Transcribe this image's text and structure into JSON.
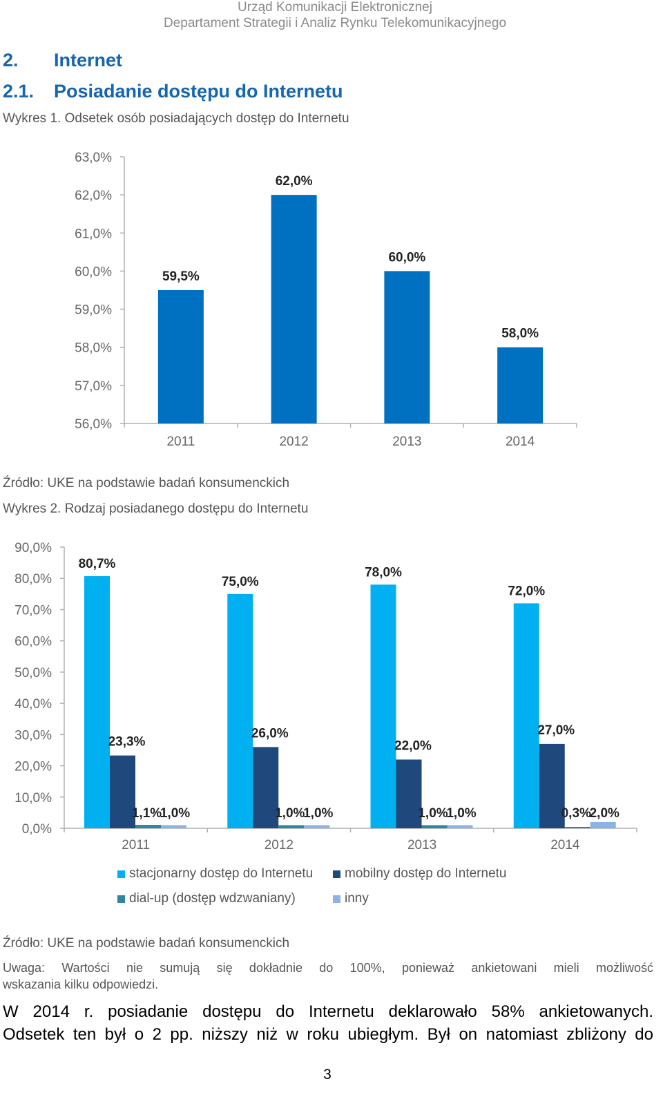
{
  "header": {
    "line1": "Urząd Komunikacji Elektronicznej",
    "line2": "Departament Strategii i Analiz Rynku Telekomunikacyjnego"
  },
  "section": {
    "number": "2.",
    "title": "Internet"
  },
  "subsection": {
    "number": "2.1.",
    "title": "Posiadanie dostępu do Internetu"
  },
  "chart1_caption": "Wykres 1. Odsetek osób posiadających dostęp do Internetu",
  "chart1_source": "Źródło: UKE na podstawie badań konsumenckich",
  "chart2_caption": "Wykres 2. Rodzaj posiadanego dostępu do Internetu",
  "chart2_source": "Źródło: UKE na podstawie badań konsumenckich",
  "note": {
    "line1": "Uwaga: Wartości nie sumują się dokładnie do 100%, ponieważ ankietowani mieli możliwość",
    "line2": "wskazania kilku odpowiedzi."
  },
  "body": {
    "line1": "W 2014 r. posiadanie dostępu do Internetu deklarowało 58% ankietowanych.",
    "line2": "Odsetek ten był o 2 pp. niższy niż w roku ubiegłym. Był on natomiast zbliżony do"
  },
  "page_number": "3",
  "chart_data": [
    {
      "type": "bar",
      "title": "",
      "categories": [
        "2011",
        "2012",
        "2013",
        "2014"
      ],
      "values": [
        59.5,
        62.0,
        60.0,
        58.0
      ],
      "value_labels": [
        "59,5%",
        "62,0%",
        "60,0%",
        "58,0%"
      ],
      "ylim": [
        56,
        63
      ],
      "yticks": [
        56,
        57,
        58,
        59,
        60,
        61,
        62,
        63
      ],
      "ytick_labels": [
        "56,0%",
        "57,0%",
        "58,0%",
        "59,0%",
        "60,0%",
        "61,0%",
        "62,0%",
        "63,0%"
      ],
      "color": "#0070c0",
      "grid": false
    },
    {
      "type": "bar",
      "title": "",
      "categories": [
        "2011",
        "2012",
        "2013",
        "2014"
      ],
      "ylim": [
        0,
        90
      ],
      "yticks": [
        0,
        10,
        20,
        30,
        40,
        50,
        60,
        70,
        80,
        90
      ],
      "ytick_labels": [
        "0,0%",
        "10,0%",
        "20,0%",
        "30,0%",
        "40,0%",
        "50,0%",
        "60,0%",
        "70,0%",
        "80,0%",
        "90,0%"
      ],
      "grid": false,
      "legend_position": "bottom",
      "series": [
        {
          "name": "stacjonarny dostęp do Internetu",
          "color": "#00b0f0",
          "values": [
            80.7,
            75.0,
            78.0,
            72.0
          ],
          "labels": [
            "80,7%",
            "75,0%",
            "78,0%",
            "72,0%"
          ]
        },
        {
          "name": "mobilny dostęp do Internetu",
          "color": "#1f497d",
          "values": [
            23.3,
            26.0,
            22.0,
            27.0
          ],
          "labels": [
            "23,3%",
            "26,0%",
            "22,0%",
            "27,0%"
          ]
        },
        {
          "name": "dial-up (dostęp wdzwaniany)",
          "color": "#31859c",
          "values": [
            1.1,
            1.0,
            1.0,
            0.3
          ],
          "labels": [
            "1,1%",
            "1,0%",
            "1,0%",
            "0,3%"
          ]
        },
        {
          "name": "inny",
          "color": "#8db3e2",
          "values": [
            1.0,
            1.0,
            1.0,
            2.0
          ],
          "labels": [
            "1,0%",
            "1,0%",
            "1,0%",
            "2,0%"
          ]
        }
      ]
    }
  ]
}
